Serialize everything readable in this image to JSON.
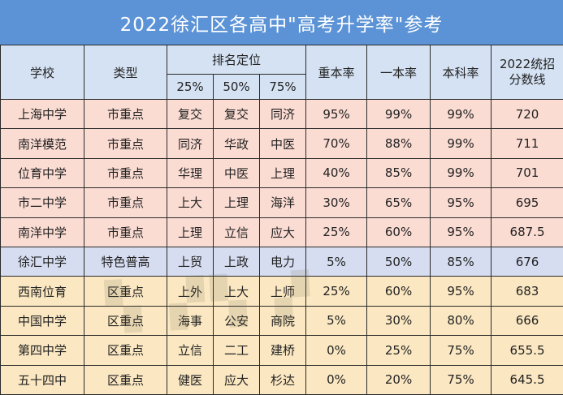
{
  "title": "2022徐汇区各高中\"高考升学率\"参考",
  "headers": {
    "school": "学校",
    "type": "类型",
    "rank_group": "排名定位",
    "p25": "25%",
    "p50": "50%",
    "p75": "75%",
    "key_rate": "重本率",
    "tier1_rate": "一本率",
    "bachelor_rate": "本科率",
    "cutoff_line1": "2022统招",
    "cutoff_line2": "分数线"
  },
  "rows": [
    {
      "school": "上海中学",
      "type": "市重点",
      "p25": "复交",
      "p50": "复交",
      "p75": "同济",
      "key_rate": "95%",
      "tier1_rate": "99%",
      "bachelor_rate": "99%",
      "cutoff": "720"
    },
    {
      "school": "南洋模范",
      "type": "市重点",
      "p25": "同济",
      "p50": "华政",
      "p75": "中医",
      "key_rate": "70%",
      "tier1_rate": "88%",
      "bachelor_rate": "99%",
      "cutoff": "711"
    },
    {
      "school": "位育中学",
      "type": "市重点",
      "p25": "华理",
      "p50": "中医",
      "p75": "上理",
      "key_rate": "40%",
      "tier1_rate": "85%",
      "bachelor_rate": "99%",
      "cutoff": "701"
    },
    {
      "school": "市二中学",
      "type": "市重点",
      "p25": "上大",
      "p50": "上理",
      "p75": "海洋",
      "key_rate": "30%",
      "tier1_rate": "65%",
      "bachelor_rate": "95%",
      "cutoff": "695"
    },
    {
      "school": "南洋中学",
      "type": "市重点",
      "p25": "上理",
      "p50": "立信",
      "p75": "应大",
      "key_rate": "25%",
      "tier1_rate": "60%",
      "bachelor_rate": "95%",
      "cutoff": "687.5"
    },
    {
      "school": "徐汇中学",
      "type": "特色普高",
      "p25": "上贸",
      "p50": "上政",
      "p75": "电力",
      "key_rate": "5%",
      "tier1_rate": "50%",
      "bachelor_rate": "85%",
      "cutoff": "676"
    },
    {
      "school": "西南位育",
      "type": "区重点",
      "p25": "上外",
      "p50": "上大",
      "p75": "上师",
      "key_rate": "25%",
      "tier1_rate": "60%",
      "bachelor_rate": "95%",
      "cutoff": "683"
    },
    {
      "school": "中国中学",
      "type": "区重点",
      "p25": "海事",
      "p50": "公安",
      "p75": "商院",
      "key_rate": "5%",
      "tier1_rate": "30%",
      "bachelor_rate": "80%",
      "cutoff": "666"
    },
    {
      "school": "第四中学",
      "type": "区重点",
      "p25": "立信",
      "p50": "二工",
      "p75": "建桥",
      "key_rate": "0%",
      "tier1_rate": "25%",
      "bachelor_rate": "75%",
      "cutoff": "655.5"
    },
    {
      "school": "五十四中",
      "type": "区重点",
      "p25": "健医",
      "p50": "应大",
      "p75": "杉达",
      "key_rate": "0%",
      "tier1_rate": "20%",
      "bachelor_rate": "75%",
      "cutoff": "645.5"
    }
  ],
  "colors": {
    "title_bg": "#5b93d6",
    "header_bg": "#d5e2f3",
    "city_key_bg": "#fbdcd3",
    "special_bg": "#d6ddf0",
    "district_key_bg": "#fbe8c2"
  }
}
